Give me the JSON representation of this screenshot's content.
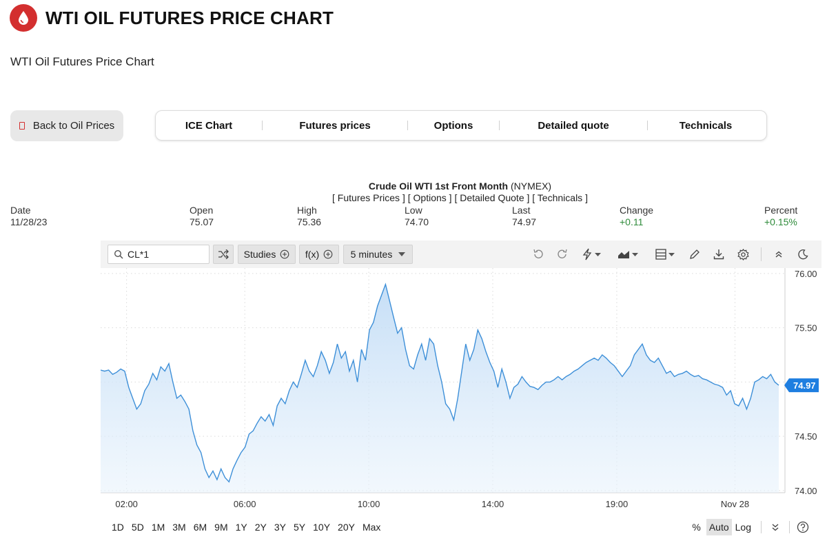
{
  "header": {
    "title": "WTI OIL FUTURES PRICE CHART",
    "subtitle": "WTI Oil Futures Price Chart",
    "brand_color": "#d32f2f"
  },
  "back_button": {
    "label": "Back to Oil Prices"
  },
  "tabs": [
    "ICE Chart",
    "Futures prices",
    "Options",
    "Detailed quote",
    "Technicals"
  ],
  "quote": {
    "instrument": "Crude Oil WTI 1st Front Month",
    "exchange": "(NYMEX)",
    "links": [
      "[ Futures Prices ]",
      "[ Options ]",
      "[ Detailed Quote ]",
      "[ Technicals ]"
    ],
    "stats": {
      "date": {
        "label": "Date",
        "value": "11/28/23"
      },
      "open": {
        "label": "Open",
        "value": "75.07"
      },
      "high": {
        "label": "High",
        "value": "75.36"
      },
      "low": {
        "label": "Low",
        "value": "74.70"
      },
      "last": {
        "label": "Last",
        "value": "74.97"
      },
      "change": {
        "label": "Change",
        "value": "+0.11"
      },
      "percent": {
        "label": "Percent",
        "value": "+0.15%"
      }
    }
  },
  "toolbar": {
    "symbol": "CL*1",
    "studies_label": "Studies",
    "fx_label": "f(x)",
    "interval_label": "5 minutes",
    "icons": [
      "shuffle-icon",
      "plus-circle-icon",
      "undo-icon",
      "redo-icon",
      "lightning-icon",
      "area-chart-icon",
      "layout-icon",
      "pencil-icon",
      "download-icon",
      "gear-icon",
      "chevron-up-icon",
      "moon-icon"
    ]
  },
  "range_buttons": [
    "1D",
    "5D",
    "1M",
    "3M",
    "6M",
    "9M",
    "1Y",
    "2Y",
    "3Y",
    "5Y",
    "10Y",
    "20Y",
    "Max"
  ],
  "scale_controls": {
    "percent": "%",
    "auto": "Auto",
    "log": "Log"
  },
  "chart_data": {
    "type": "area",
    "title": "",
    "xlabel": "",
    "ylabel": "",
    "ylim": [
      73.98,
      76.05
    ],
    "yticks": [
      "76.00",
      "75.50",
      "75.00",
      "74.50",
      "74.00"
    ],
    "xticks": [
      "02:00",
      "06:00",
      "10:00",
      "14:00",
      "19:00",
      "Nov 28"
    ],
    "last_price_label": "74.97",
    "line_color": "#3d8fd8",
    "grid": true,
    "series": [
      {
        "values": [
          75.11,
          75.1,
          75.11,
          75.07,
          75.09,
          75.12,
          75.1,
          74.95,
          74.85,
          74.75,
          74.8,
          74.92,
          74.98,
          75.08,
          75.02,
          75.14,
          75.1,
          75.17,
          75.0,
          74.85,
          74.88,
          74.82,
          74.75,
          74.55,
          74.42,
          74.35,
          74.2,
          74.12,
          74.18,
          74.1,
          74.2,
          74.12,
          74.08,
          74.2,
          74.28,
          74.35,
          74.4,
          74.52,
          74.55,
          74.62,
          74.68,
          74.64,
          74.7,
          74.6,
          74.78,
          74.85,
          74.8,
          74.92,
          75.0,
          74.95,
          75.07,
          75.2,
          75.1,
          75.05,
          75.15,
          75.28,
          75.2,
          75.08,
          75.18,
          75.35,
          75.22,
          75.28,
          75.1,
          75.2,
          75.0,
          75.3,
          75.2,
          75.48,
          75.55,
          75.7,
          75.8,
          75.9,
          75.75,
          75.6,
          75.45,
          75.5,
          75.3,
          75.15,
          75.12,
          75.25,
          75.35,
          75.2,
          75.4,
          75.35,
          75.15,
          75.0,
          74.8,
          74.75,
          74.65,
          74.85,
          75.1,
          75.35,
          75.2,
          75.3,
          75.48,
          75.4,
          75.28,
          75.18,
          75.1,
          74.95,
          75.12,
          75.0,
          74.85,
          74.95,
          74.98,
          75.05,
          75.0,
          74.96,
          74.95,
          74.93,
          74.97,
          75.0,
          75.0,
          75.02,
          75.05,
          75.02,
          75.05,
          75.07,
          75.1,
          75.12,
          75.15,
          75.18,
          75.2,
          75.22,
          75.2,
          75.25,
          75.22,
          75.18,
          75.15,
          75.1,
          75.05,
          75.1,
          75.15,
          75.25,
          75.3,
          75.35,
          75.25,
          75.2,
          75.18,
          75.22,
          75.15,
          75.08,
          75.1,
          75.05,
          75.07,
          75.08,
          75.1,
          75.07,
          75.05,
          75.06,
          75.03,
          75.02,
          75.0,
          74.98,
          74.97,
          74.95,
          74.88,
          74.92,
          74.8,
          74.78,
          74.85,
          74.75,
          74.85,
          75.0,
          75.02,
          75.05,
          75.03,
          75.07,
          75.0,
          74.97
        ]
      }
    ]
  }
}
